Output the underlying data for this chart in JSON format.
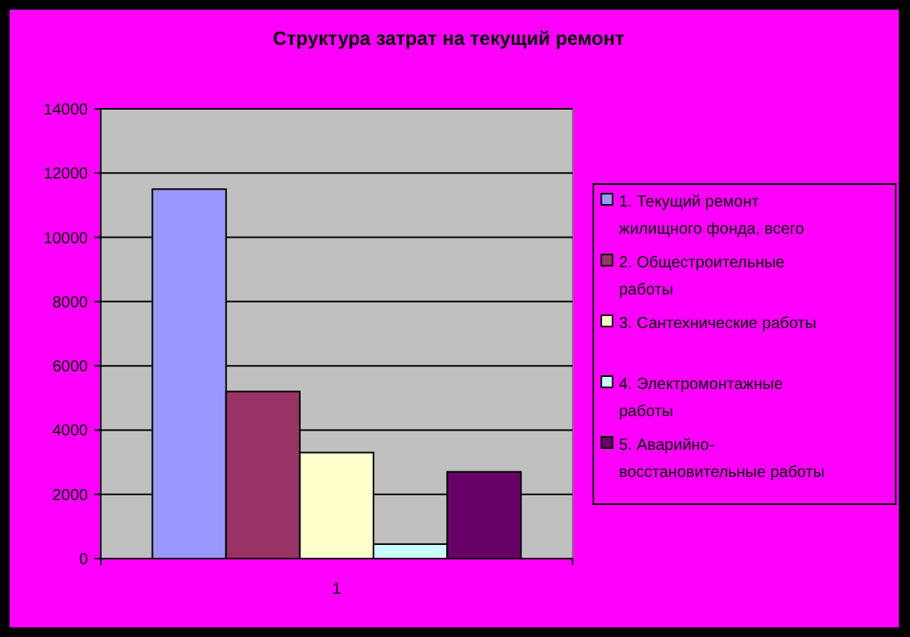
{
  "chart_data": {
    "type": "bar",
    "title": "Структура затрат на текущий ремонт",
    "categories": [
      "1"
    ],
    "series": [
      {
        "name": "1. Текущий ремонт жилищного фонда, всего",
        "color": "#9999ff",
        "values": [
          11500
        ]
      },
      {
        "name": "2. Общестроительные работы",
        "color": "#993366",
        "values": [
          5200
        ]
      },
      {
        "name": "3. Сантехнические работы",
        "color": "#ffffcc",
        "values": [
          3300
        ]
      },
      {
        "name": "4. Электромонтажные работы",
        "color": "#ccffff",
        "values": [
          450
        ]
      },
      {
        "name": "5. Аварийно-восстановительные работы",
        "color": "#660066",
        "values": [
          2700
        ]
      }
    ],
    "ylim": [
      0,
      14000
    ],
    "yticks": [
      0,
      2000,
      4000,
      6000,
      8000,
      10000,
      12000,
      14000
    ],
    "grid": "y",
    "legend": "right"
  }
}
